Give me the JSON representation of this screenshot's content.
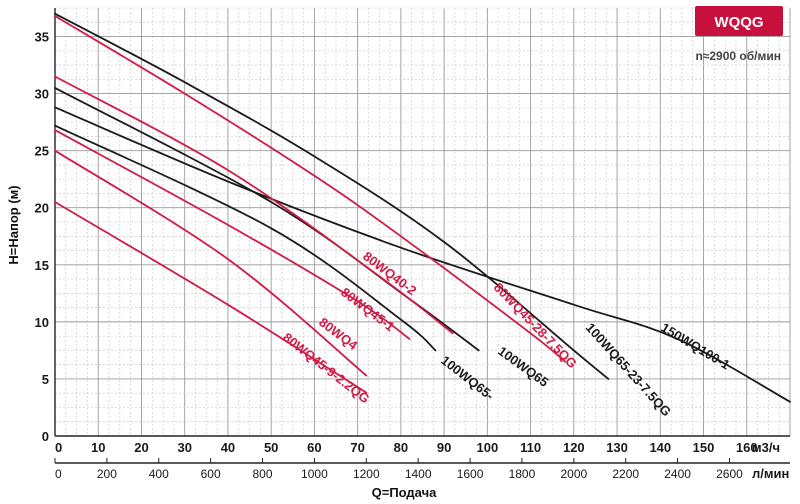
{
  "chart_data": {
    "type": "line",
    "badge": "WQQG",
    "speed_note": "n≈2900 об/мин",
    "ylabel": "H=Напор (м)",
    "xlabel": "Q=Подача",
    "x_unit_primary": "м3/ч",
    "x_unit_secondary": "л/мин",
    "xlim": [
      0,
      170
    ],
    "ylim": [
      0,
      37.5
    ],
    "y_ticks": [
      0,
      5,
      10,
      15,
      20,
      25,
      30,
      35
    ],
    "x_ticks": [
      0,
      10,
      20,
      30,
      40,
      50,
      60,
      70,
      80,
      90,
      100,
      110,
      120,
      130,
      140,
      150,
      160
    ],
    "x_ticks_secondary": [
      0,
      200,
      400,
      600,
      800,
      1000,
      1200,
      1400,
      1600,
      1800,
      2000,
      2200,
      2400,
      2600
    ],
    "grid": true,
    "colors": {
      "red": "#d11a45",
      "black": "#1a1a1a",
      "badge": "#c8103c"
    },
    "series": [
      {
        "name": "150WQ100-1",
        "color": "#1a1a1a",
        "x": [
          0,
          40,
          80,
          120,
          144,
          170
        ],
        "y": [
          28.8,
          22.3,
          16.5,
          11.5,
          8.5,
          3.0
        ]
      },
      {
        "name": "100WQ65-23-7.5QG",
        "color": "#1a1a1a",
        "x": [
          0,
          30,
          60,
          90,
          120,
          128
        ],
        "y": [
          37.0,
          31.0,
          24.5,
          17.0,
          7.5,
          5.0
        ]
      },
      {
        "name": "80WQ45-28-7.5QG",
        "color": "#d11a45",
        "x": [
          0,
          30,
          60,
          80,
          110,
          118
        ],
        "y": [
          36.8,
          30.0,
          22.8,
          17.5,
          9.0,
          6.5
        ]
      },
      {
        "name": "100WQ65",
        "color": "#1a1a1a",
        "x": [
          0,
          50,
          82,
          98
        ],
        "y": [
          30.5,
          20.5,
          12.0,
          7.5
        ]
      },
      {
        "name": "80WQ40-2",
        "color": "#d11a45",
        "x": [
          0,
          40,
          75,
          92
        ],
        "y": [
          31.5,
          23.3,
          14.0,
          9.0
        ]
      },
      {
        "name": "100WQ65-",
        "color": "#1a1a1a",
        "x": [
          0,
          50,
          80,
          88
        ],
        "y": [
          27.2,
          18.2,
          10.2,
          7.5
        ]
      },
      {
        "name": "80WQ45-1",
        "color": "#d11a45",
        "x": [
          0,
          40,
          70,
          82
        ],
        "y": [
          26.8,
          18.5,
          11.8,
          8.5
        ]
      },
      {
        "name": "80WQ4",
        "color": "#d11a45",
        "x": [
          0,
          40,
          72
        ],
        "y": [
          25.0,
          15.5,
          5.3
        ]
      },
      {
        "name": "80WQ45-9-2.2QG",
        "color": "#d11a45",
        "x": [
          0,
          40,
          72
        ],
        "y": [
          20.5,
          11.5,
          3.8
        ]
      }
    ]
  }
}
